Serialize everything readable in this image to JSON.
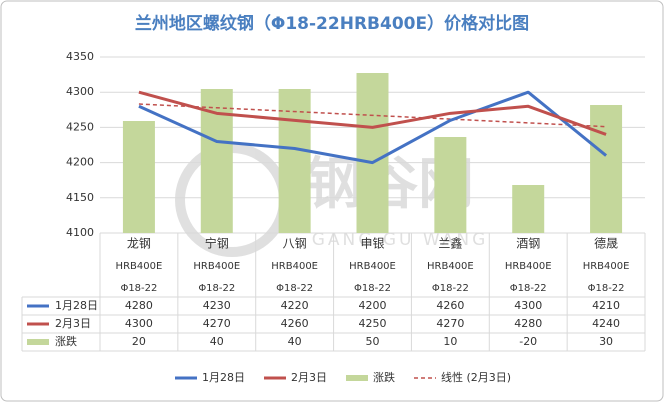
{
  "chart_data": {
    "type": "combo",
    "title": "兰州地区螺纹钢（Φ18-22HRB400E）价格对比图",
    "watermark": {
      "text": "钢谷网",
      "subtext": "GANG GU WANG"
    },
    "categories": [
      {
        "name": "龙钢",
        "grade": "HRB400E",
        "size": "Φ18-22"
      },
      {
        "name": "宁钢",
        "grade": "HRB400E",
        "size": "Φ18-22"
      },
      {
        "name": "八钢",
        "grade": "HRB400E",
        "size": "Φ18-22"
      },
      {
        "name": "申银",
        "grade": "HRB400E",
        "size": "Φ18-22"
      },
      {
        "name": "兰鑫",
        "grade": "HRB400E",
        "size": "Φ18-22"
      },
      {
        "name": "酒钢",
        "grade": "HRB400E",
        "size": "Φ18-22"
      },
      {
        "name": "德晟",
        "grade": "HRB400E",
        "size": "Φ18-22"
      }
    ],
    "series": [
      {
        "name": "1月28日",
        "type": "line",
        "color": "#4472c4",
        "values": [
          4280,
          4230,
          4220,
          4200,
          4260,
          4300,
          4210
        ]
      },
      {
        "name": "2月3日",
        "type": "line",
        "color": "#c0504d",
        "values": [
          4300,
          4270,
          4260,
          4250,
          4270,
          4280,
          4240
        ]
      },
      {
        "name": "涨跌",
        "type": "bar",
        "axis": "y2",
        "color": "#c4d79b",
        "values": [
          20,
          40,
          40,
          50,
          10,
          -20,
          30
        ]
      }
    ],
    "trendline": {
      "name": "线性 (2月3日)",
      "series": 1,
      "color": "#c0504d"
    },
    "ylim": [
      4100,
      4350
    ],
    "yticks": [
      4100,
      4150,
      4200,
      4250,
      4300,
      4350
    ],
    "y2lim": [
      -50,
      60
    ],
    "grid": true
  }
}
